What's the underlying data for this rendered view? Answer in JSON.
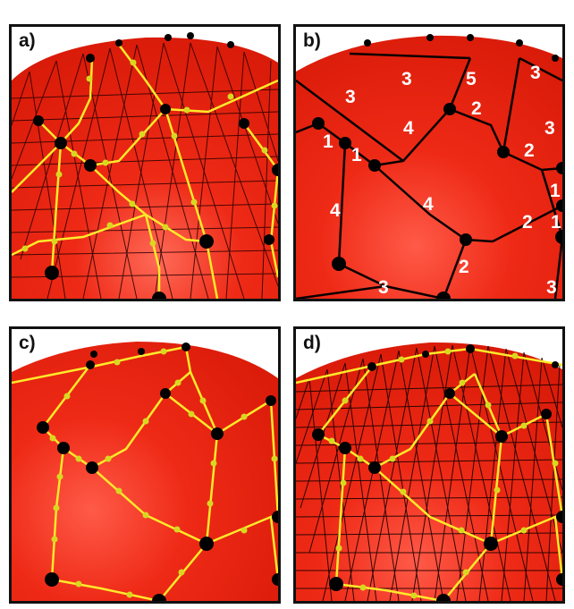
{
  "panels": [
    {
      "id": "a",
      "label": "a)"
    },
    {
      "id": "b",
      "label": "b)"
    },
    {
      "id": "c",
      "label": "c)"
    },
    {
      "id": "d",
      "label": "d)"
    }
  ],
  "colors": {
    "surface": "#e8200f",
    "surface_highlight": "#ff5a48",
    "mesh_edge": "#1a0000",
    "patch_edge": "#ffe92a",
    "corner_node": "#000000",
    "edge_node": "#d8d820",
    "label_text": "#ffffff"
  },
  "edge_counts": [
    "3",
    "3",
    "5",
    "3",
    "2",
    "3",
    "4",
    "1",
    "1",
    "2",
    "4",
    "1",
    "2",
    "1",
    "4",
    "2",
    "3",
    "3"
  ]
}
